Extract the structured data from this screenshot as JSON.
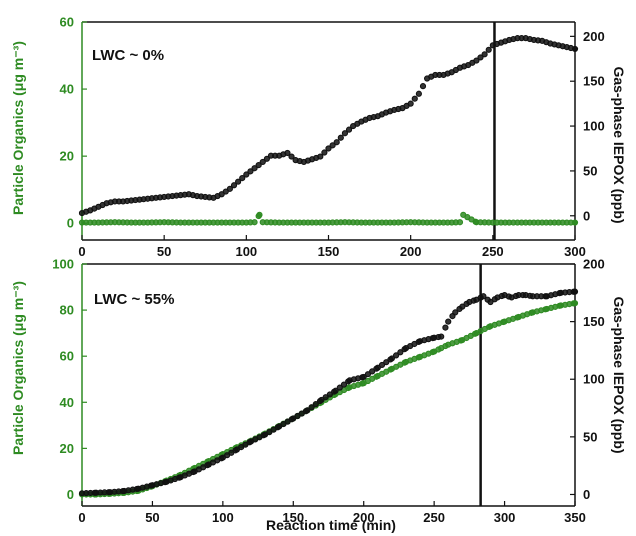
{
  "colors": {
    "organics": "#2e8b22",
    "iepox": "#111111",
    "axis_left": "#2e8b22",
    "axis_right": "#111111"
  },
  "chart_data": [
    {
      "type": "scatter",
      "annotation": "LWC ~ 0%",
      "xlabel": "",
      "ylabel_left": "Particle Organics (μg m⁻³)",
      "ylabel_right": "Gas-phase IEPOX (ppb)",
      "xlim": [
        0,
        300
      ],
      "ylim_left": [
        -5,
        60
      ],
      "ylim_right": [
        -27,
        216
      ],
      "x_ticks": [
        "0",
        "50",
        "100",
        "150",
        "200",
        "250",
        "300"
      ],
      "y_left_ticks": [
        "0",
        "20",
        "40",
        "60"
      ],
      "y_right_ticks": [
        "0",
        "50",
        "100",
        "150",
        "200"
      ],
      "vertical_line_x": 251,
      "series": [
        {
          "axis": "right",
          "x": [
            0,
            5,
            10,
            15,
            20,
            25,
            30,
            35,
            40,
            45,
            50,
            55,
            60,
            65,
            70,
            75,
            80,
            85,
            90,
            95,
            100,
            105,
            110,
            115,
            120,
            125,
            130,
            135,
            140,
            145,
            150,
            155,
            160,
            165,
            170,
            175,
            180,
            185,
            190,
            195,
            200,
            205,
            210,
            215,
            220,
            225,
            230,
            235,
            240,
            245,
            250,
            255,
            260,
            265,
            270,
            275,
            280,
            285,
            290,
            295,
            300
          ],
          "y": [
            3,
            6,
            10,
            14,
            16,
            16,
            17,
            18,
            19,
            20,
            21,
            22,
            23,
            24,
            22,
            21,
            20,
            24,
            30,
            38,
            46,
            53,
            60,
            67,
            67,
            70,
            62,
            60,
            63,
            66,
            75,
            82,
            92,
            100,
            105,
            109,
            111,
            115,
            118,
            120,
            125,
            136,
            153,
            157,
            157,
            160,
            165,
            168,
            173,
            180,
            190,
            193,
            196,
            198,
            198,
            196,
            195,
            192,
            190,
            188,
            186
          ]
        },
        {
          "axis": "left",
          "x": [
            0,
            10,
            20,
            30,
            40,
            50,
            60,
            70,
            80,
            90,
            100,
            105,
            108,
            110,
            120,
            130,
            140,
            150,
            160,
            170,
            180,
            190,
            200,
            210,
            220,
            225,
            230,
            232,
            240,
            250,
            260,
            270,
            280,
            290,
            300
          ],
          "y": [
            0.2,
            0.2,
            0.3,
            0.2,
            0.2,
            0.3,
            0.2,
            0.2,
            0.2,
            0.2,
            0.2,
            0.3,
            2.5,
            0.3,
            0.2,
            0.2,
            0.2,
            0.2,
            0.3,
            0.2,
            0.2,
            0.2,
            0.3,
            0.2,
            0.2,
            0.2,
            0.3,
            2.5,
            0.3,
            0.2,
            0.2,
            0.2,
            0.2,
            0.2,
            0.2
          ]
        }
      ]
    },
    {
      "type": "scatter",
      "annotation": "LWC ~ 55%",
      "xlabel": "Reaction time (min)",
      "ylabel_left": "Particle Organics (μg m⁻³)",
      "ylabel_right": "Gas-phase IEPOX (ppb)",
      "xlim": [
        0,
        350
      ],
      "ylim_left": [
        -5,
        100
      ],
      "ylim_right": [
        -10,
        200
      ],
      "x_ticks": [
        "0",
        "50",
        "100",
        "150",
        "200",
        "250",
        "300",
        "350"
      ],
      "y_left_ticks": [
        "0",
        "20",
        "40",
        "60",
        "80",
        "100"
      ],
      "y_right_ticks": [
        "0",
        "50",
        "100",
        "150",
        "200"
      ],
      "vertical_line_x": 283,
      "series": [
        {
          "axis": "left",
          "x": [
            0,
            10,
            20,
            30,
            40,
            50,
            60,
            70,
            80,
            90,
            100,
            110,
            120,
            130,
            140,
            150,
            160,
            170,
            180,
            190,
            200,
            210,
            220,
            230,
            240,
            250,
            255,
            260,
            270,
            280,
            290,
            300,
            310,
            320,
            330,
            340,
            350
          ],
          "y": [
            0,
            0,
            0.3,
            0.7,
            1.6,
            3.6,
            6,
            8.5,
            11.5,
            14.5,
            17.5,
            20.5,
            23.3,
            26.4,
            29.7,
            33,
            36.5,
            40,
            43.5,
            46.5,
            48.3,
            51.4,
            54.5,
            57.5,
            59.7,
            62,
            63.5,
            65,
            67,
            70,
            73,
            75,
            77,
            79,
            80.5,
            82,
            83
          ]
        },
        {
          "axis": "right",
          "x": [
            0,
            10,
            20,
            30,
            40,
            50,
            60,
            70,
            80,
            90,
            100,
            110,
            120,
            130,
            140,
            150,
            160,
            170,
            180,
            190,
            200,
            210,
            220,
            230,
            240,
            250,
            255,
            260,
            265,
            270,
            275,
            280,
            285,
            290,
            295,
            300,
            305,
            310,
            315,
            320,
            330,
            340,
            350
          ],
          "y": [
            1,
            1.5,
            2,
            3,
            5,
            8,
            11,
            15,
            20,
            26,
            32,
            39,
            46,
            52,
            59,
            66,
            73,
            82,
            90,
            99,
            102,
            110,
            118,
            127,
            133,
            136,
            137,
            150,
            158,
            163,
            167,
            169,
            172,
            167,
            171,
            173,
            171,
            173,
            173,
            172,
            172,
            175,
            176
          ]
        }
      ]
    }
  ]
}
